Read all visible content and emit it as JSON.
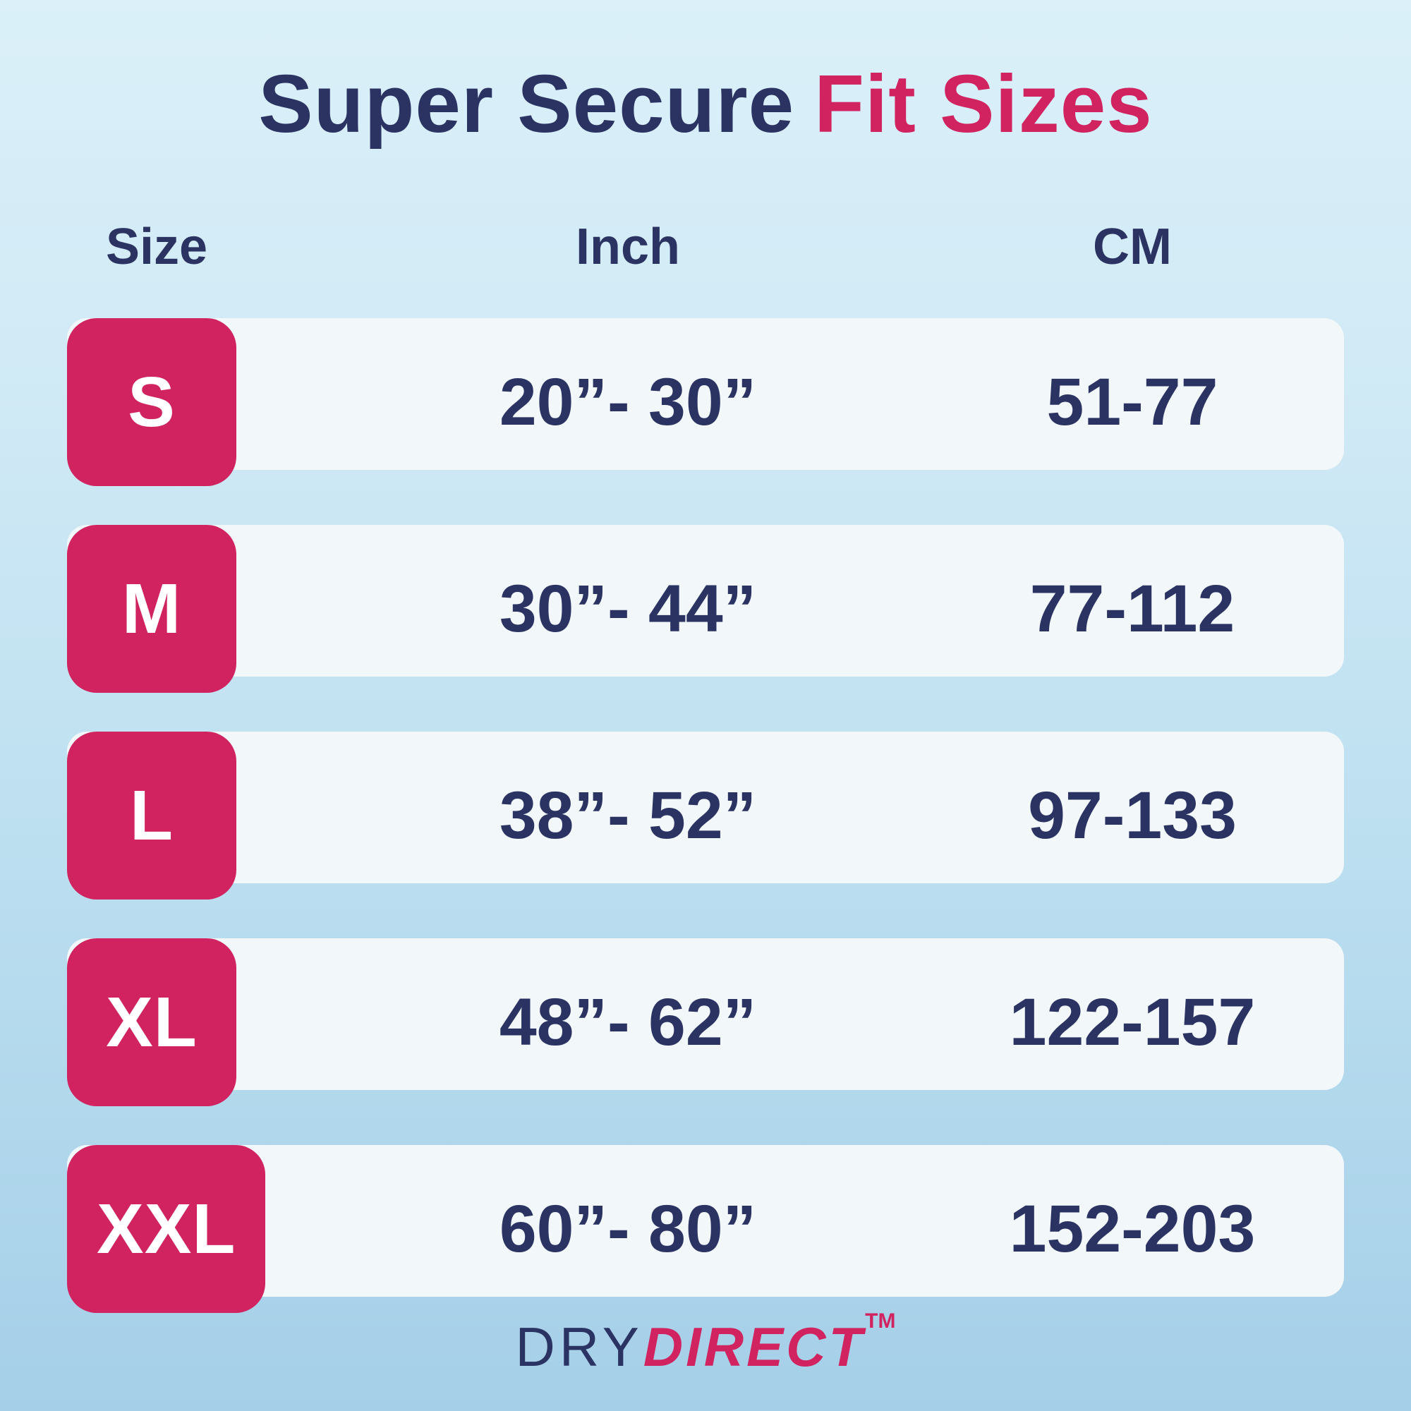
{
  "title": {
    "part1": "Super Secure",
    "part2": "Fit Sizes"
  },
  "table": {
    "headers": {
      "size": "Size",
      "inch": "Inch",
      "cm": "CM"
    },
    "rows": [
      {
        "size": "S",
        "inch": "20”- 30”",
        "cm": "51-77"
      },
      {
        "size": "M",
        "inch": "30”- 44”",
        "cm": "77-112"
      },
      {
        "size": "L",
        "inch": "38”- 52”",
        "cm": "97-133"
      },
      {
        "size": "XL",
        "inch": "48”- 62”",
        "cm": "122-157"
      },
      {
        "size": "XXL",
        "inch": "60”- 80”",
        "cm": "152-203"
      }
    ]
  },
  "footer": {
    "brand_part1": "DRY",
    "brand_part2": "DIRECT",
    "trademark": "TM"
  },
  "colors": {
    "accent_pink": "#d02360",
    "navy": "#2b3363",
    "row_background": "#f2f7fa",
    "background_top": "#dbf0f9",
    "background_bottom": "#a5cfe8"
  },
  "chart_data": {
    "type": "table",
    "title": "Super Secure Fit Sizes",
    "columns": [
      "Size",
      "Inch",
      "CM"
    ],
    "rows": [
      [
        "S",
        "20”- 30”",
        "51-77"
      ],
      [
        "M",
        "30”- 44”",
        "77-112"
      ],
      [
        "L",
        "38”- 52”",
        "97-133"
      ],
      [
        "XL",
        "48”- 62”",
        "122-157"
      ],
      [
        "XXL",
        "60”- 80”",
        "152-203"
      ]
    ]
  }
}
